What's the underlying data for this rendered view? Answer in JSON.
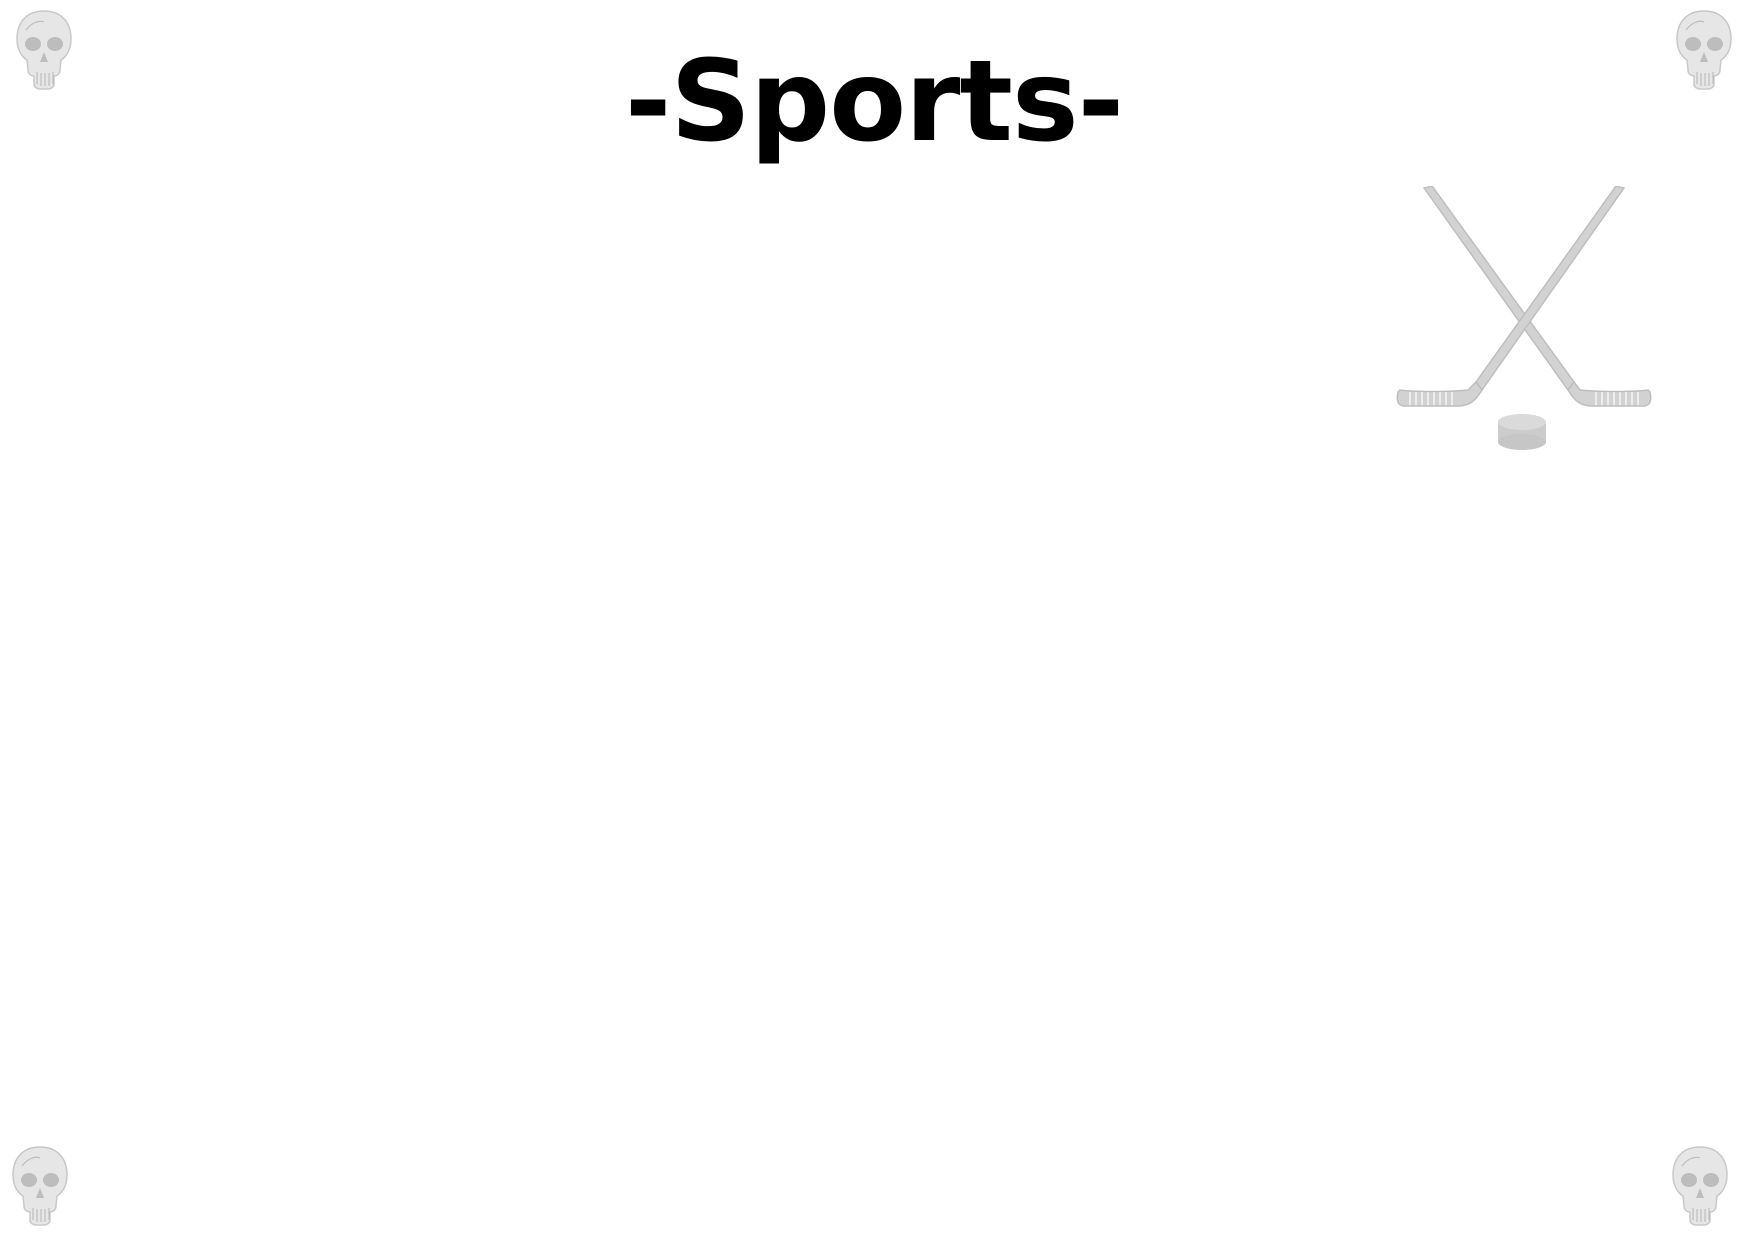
{
  "page": {
    "title": "-Sports-"
  },
  "decorations": {
    "corner_icon": "skull-icon",
    "corner_color": "#d8d8d8",
    "centerpiece_icon": "crossed-hockey-sticks-and-puck-icon",
    "centerpiece_color": "#cccccc"
  }
}
